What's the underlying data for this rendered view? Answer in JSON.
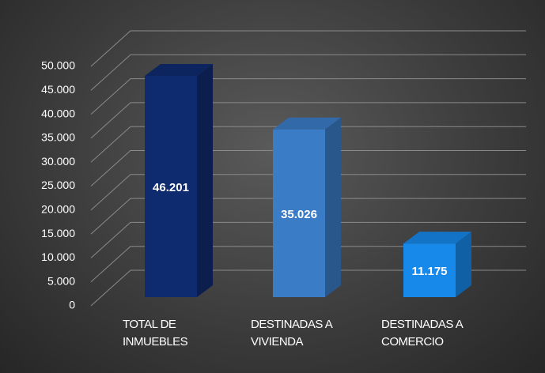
{
  "chart_data": {
    "type": "bar3d",
    "categories": [
      "TOTAL DE\nINMUEBLES",
      "DESTINADAS A\nVIVIENDA",
      "DESTINADAS A\nCOMERCIO"
    ],
    "values": [
      46201,
      35026,
      11175
    ],
    "value_labels": [
      "46.201",
      "35.026",
      "11.175"
    ],
    "colors": [
      "#0f2b6f",
      "#3b7cc6",
      "#1689ea"
    ],
    "ylim": [
      0,
      50000
    ],
    "yticks": [
      0,
      {
        "value": 5000,
        "label": "5.000"
      },
      {
        "value": 10000,
        "label": "10.000"
      },
      {
        "value": 15000,
        "label": "15.000"
      },
      {
        "value": 20000,
        "label": "20.000"
      },
      {
        "value": 25000,
        "label": "25.000"
      },
      {
        "value": 30000,
        "label": "30.000"
      },
      {
        "value": 35000,
        "label": "35.000"
      },
      {
        "value": 40000,
        "label": "40.000"
      },
      {
        "value": 45000,
        "label": "45.000"
      },
      {
        "value": 50000,
        "label": "50.000"
      }
    ],
    "grid": true
  }
}
